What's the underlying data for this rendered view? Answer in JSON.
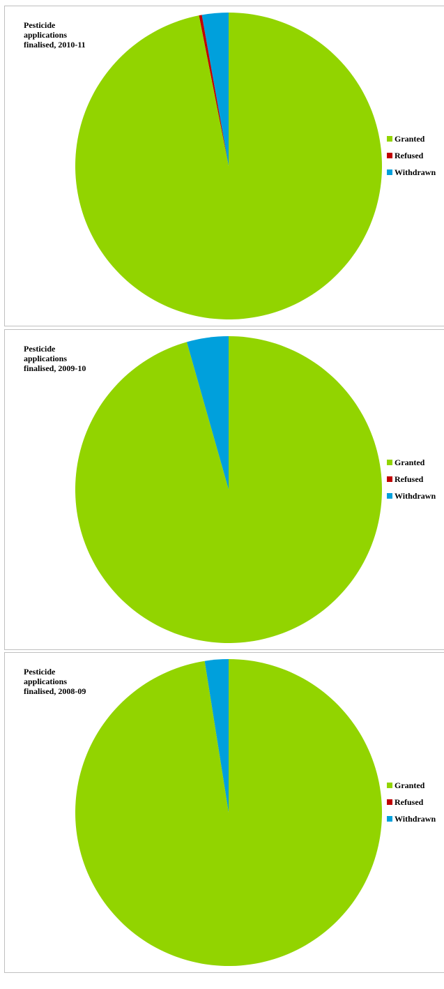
{
  "colors": {
    "granted": "#92D400",
    "refused": "#C00000",
    "withdrawn": "#00A0DC"
  },
  "chart_data": [
    {
      "type": "pie",
      "title_lines": [
        "Pesticide",
        "applications",
        "finalised, 2010-11"
      ],
      "categories": [
        "Granted",
        "Refused",
        "Withdrawn"
      ],
      "values": [
        96.9,
        0.3,
        2.8
      ],
      "legend": "right"
    },
    {
      "type": "pie",
      "title_lines": [
        "Pesticide",
        "applications",
        "finalised, 2009-10"
      ],
      "categories": [
        "Granted",
        "Refused",
        "Withdrawn"
      ],
      "values": [
        95.6,
        0,
        4.4
      ],
      "legend": "right"
    },
    {
      "type": "pie",
      "title_lines": [
        "Pesticide",
        "applications",
        "finalised, 2008-09"
      ],
      "categories": [
        "Granted",
        "Refused",
        "Withdrawn"
      ],
      "values": [
        97.5,
        0,
        2.5
      ],
      "legend": "right"
    }
  ]
}
